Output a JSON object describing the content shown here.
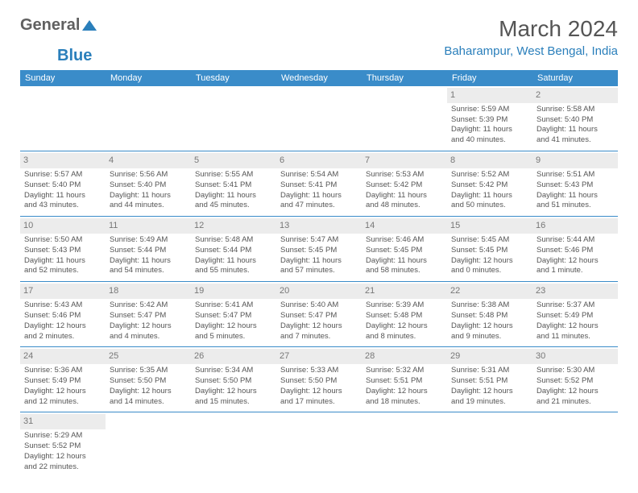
{
  "logo": {
    "text1": "General",
    "text2": "Blue"
  },
  "title": "March 2024",
  "location": "Baharampur, West Bengal, India",
  "colors": {
    "accent": "#3a8cc9",
    "accent_dark": "#2a7fbb",
    "text": "#555555",
    "daynum_bg": "#ececec"
  },
  "weekdays": [
    "Sunday",
    "Monday",
    "Tuesday",
    "Wednesday",
    "Thursday",
    "Friday",
    "Saturday"
  ],
  "weeks": [
    [
      null,
      null,
      null,
      null,
      null,
      {
        "n": "1",
        "sunrise": "Sunrise: 5:59 AM",
        "sunset": "Sunset: 5:39 PM",
        "day1": "Daylight: 11 hours",
        "day2": "and 40 minutes."
      },
      {
        "n": "2",
        "sunrise": "Sunrise: 5:58 AM",
        "sunset": "Sunset: 5:40 PM",
        "day1": "Daylight: 11 hours",
        "day2": "and 41 minutes."
      }
    ],
    [
      {
        "n": "3",
        "sunrise": "Sunrise: 5:57 AM",
        "sunset": "Sunset: 5:40 PM",
        "day1": "Daylight: 11 hours",
        "day2": "and 43 minutes."
      },
      {
        "n": "4",
        "sunrise": "Sunrise: 5:56 AM",
        "sunset": "Sunset: 5:40 PM",
        "day1": "Daylight: 11 hours",
        "day2": "and 44 minutes."
      },
      {
        "n": "5",
        "sunrise": "Sunrise: 5:55 AM",
        "sunset": "Sunset: 5:41 PM",
        "day1": "Daylight: 11 hours",
        "day2": "and 45 minutes."
      },
      {
        "n": "6",
        "sunrise": "Sunrise: 5:54 AM",
        "sunset": "Sunset: 5:41 PM",
        "day1": "Daylight: 11 hours",
        "day2": "and 47 minutes."
      },
      {
        "n": "7",
        "sunrise": "Sunrise: 5:53 AM",
        "sunset": "Sunset: 5:42 PM",
        "day1": "Daylight: 11 hours",
        "day2": "and 48 minutes."
      },
      {
        "n": "8",
        "sunrise": "Sunrise: 5:52 AM",
        "sunset": "Sunset: 5:42 PM",
        "day1": "Daylight: 11 hours",
        "day2": "and 50 minutes."
      },
      {
        "n": "9",
        "sunrise": "Sunrise: 5:51 AM",
        "sunset": "Sunset: 5:43 PM",
        "day1": "Daylight: 11 hours",
        "day2": "and 51 minutes."
      }
    ],
    [
      {
        "n": "10",
        "sunrise": "Sunrise: 5:50 AM",
        "sunset": "Sunset: 5:43 PM",
        "day1": "Daylight: 11 hours",
        "day2": "and 52 minutes."
      },
      {
        "n": "11",
        "sunrise": "Sunrise: 5:49 AM",
        "sunset": "Sunset: 5:44 PM",
        "day1": "Daylight: 11 hours",
        "day2": "and 54 minutes."
      },
      {
        "n": "12",
        "sunrise": "Sunrise: 5:48 AM",
        "sunset": "Sunset: 5:44 PM",
        "day1": "Daylight: 11 hours",
        "day2": "and 55 minutes."
      },
      {
        "n": "13",
        "sunrise": "Sunrise: 5:47 AM",
        "sunset": "Sunset: 5:45 PM",
        "day1": "Daylight: 11 hours",
        "day2": "and 57 minutes."
      },
      {
        "n": "14",
        "sunrise": "Sunrise: 5:46 AM",
        "sunset": "Sunset: 5:45 PM",
        "day1": "Daylight: 11 hours",
        "day2": "and 58 minutes."
      },
      {
        "n": "15",
        "sunrise": "Sunrise: 5:45 AM",
        "sunset": "Sunset: 5:45 PM",
        "day1": "Daylight: 12 hours",
        "day2": "and 0 minutes."
      },
      {
        "n": "16",
        "sunrise": "Sunrise: 5:44 AM",
        "sunset": "Sunset: 5:46 PM",
        "day1": "Daylight: 12 hours",
        "day2": "and 1 minute."
      }
    ],
    [
      {
        "n": "17",
        "sunrise": "Sunrise: 5:43 AM",
        "sunset": "Sunset: 5:46 PM",
        "day1": "Daylight: 12 hours",
        "day2": "and 2 minutes."
      },
      {
        "n": "18",
        "sunrise": "Sunrise: 5:42 AM",
        "sunset": "Sunset: 5:47 PM",
        "day1": "Daylight: 12 hours",
        "day2": "and 4 minutes."
      },
      {
        "n": "19",
        "sunrise": "Sunrise: 5:41 AM",
        "sunset": "Sunset: 5:47 PM",
        "day1": "Daylight: 12 hours",
        "day2": "and 5 minutes."
      },
      {
        "n": "20",
        "sunrise": "Sunrise: 5:40 AM",
        "sunset": "Sunset: 5:47 PM",
        "day1": "Daylight: 12 hours",
        "day2": "and 7 minutes."
      },
      {
        "n": "21",
        "sunrise": "Sunrise: 5:39 AM",
        "sunset": "Sunset: 5:48 PM",
        "day1": "Daylight: 12 hours",
        "day2": "and 8 minutes."
      },
      {
        "n": "22",
        "sunrise": "Sunrise: 5:38 AM",
        "sunset": "Sunset: 5:48 PM",
        "day1": "Daylight: 12 hours",
        "day2": "and 9 minutes."
      },
      {
        "n": "23",
        "sunrise": "Sunrise: 5:37 AM",
        "sunset": "Sunset: 5:49 PM",
        "day1": "Daylight: 12 hours",
        "day2": "and 11 minutes."
      }
    ],
    [
      {
        "n": "24",
        "sunrise": "Sunrise: 5:36 AM",
        "sunset": "Sunset: 5:49 PM",
        "day1": "Daylight: 12 hours",
        "day2": "and 12 minutes."
      },
      {
        "n": "25",
        "sunrise": "Sunrise: 5:35 AM",
        "sunset": "Sunset: 5:50 PM",
        "day1": "Daylight: 12 hours",
        "day2": "and 14 minutes."
      },
      {
        "n": "26",
        "sunrise": "Sunrise: 5:34 AM",
        "sunset": "Sunset: 5:50 PM",
        "day1": "Daylight: 12 hours",
        "day2": "and 15 minutes."
      },
      {
        "n": "27",
        "sunrise": "Sunrise: 5:33 AM",
        "sunset": "Sunset: 5:50 PM",
        "day1": "Daylight: 12 hours",
        "day2": "and 17 minutes."
      },
      {
        "n": "28",
        "sunrise": "Sunrise: 5:32 AM",
        "sunset": "Sunset: 5:51 PM",
        "day1": "Daylight: 12 hours",
        "day2": "and 18 minutes."
      },
      {
        "n": "29",
        "sunrise": "Sunrise: 5:31 AM",
        "sunset": "Sunset: 5:51 PM",
        "day1": "Daylight: 12 hours",
        "day2": "and 19 minutes."
      },
      {
        "n": "30",
        "sunrise": "Sunrise: 5:30 AM",
        "sunset": "Sunset: 5:52 PM",
        "day1": "Daylight: 12 hours",
        "day2": "and 21 minutes."
      }
    ],
    [
      {
        "n": "31",
        "sunrise": "Sunrise: 5:29 AM",
        "sunset": "Sunset: 5:52 PM",
        "day1": "Daylight: 12 hours",
        "day2": "and 22 minutes."
      },
      null,
      null,
      null,
      null,
      null,
      null
    ]
  ]
}
